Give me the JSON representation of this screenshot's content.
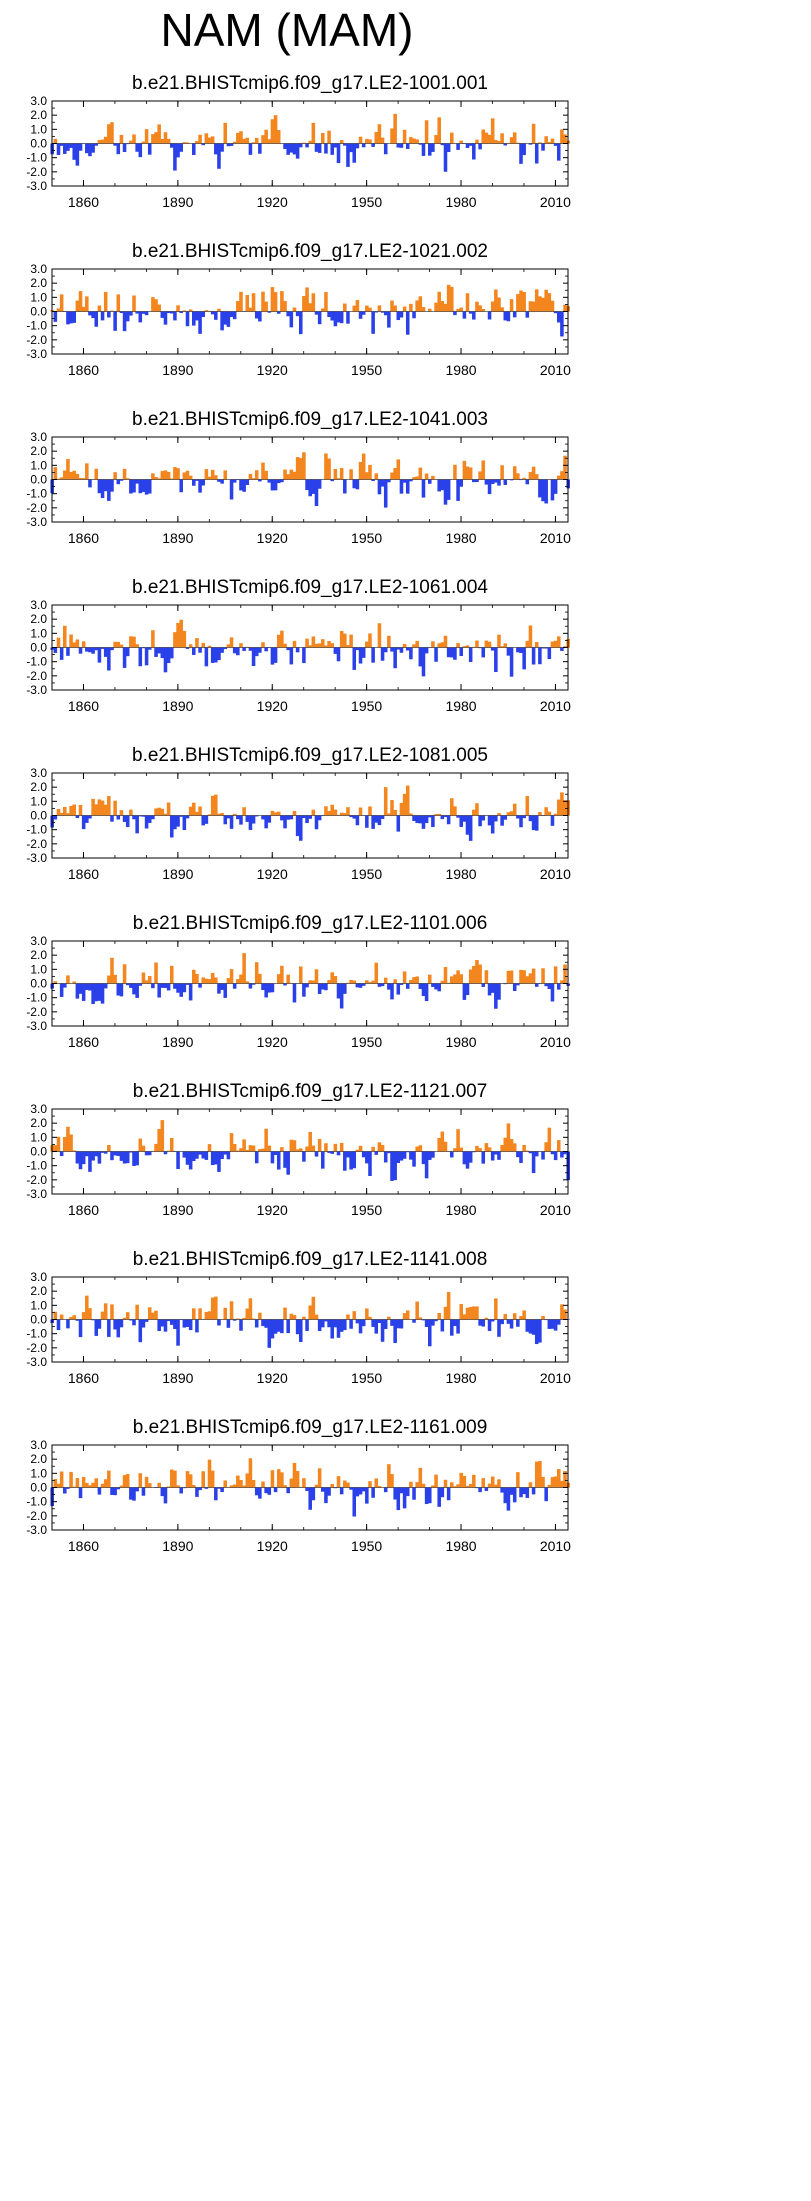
{
  "title": "NAM (MAM)",
  "colors": {
    "positive": "#f4861f",
    "negative": "#2a40e8",
    "axis": "#000000"
  },
  "chart_data": {
    "type": "area",
    "x_range": [
      1850,
      2014
    ],
    "ylim": [
      -3,
      3
    ],
    "y_ticks": [
      "3.0",
      "2.0",
      "1.0",
      "0.0",
      "-1.0",
      "-2.0",
      "-3.0"
    ],
    "x_ticks": [
      "1860",
      "1890",
      "1920",
      "1950",
      "1980",
      "2010"
    ],
    "panels": [
      {
        "title": "b.e21.BHISTcmip6.f09_g17.LE2-1001.001",
        "seed": 11
      },
      {
        "title": "b.e21.BHISTcmip6.f09_g17.LE2-1021.002",
        "seed": 23
      },
      {
        "title": "b.e21.BHISTcmip6.f09_g17.LE2-1041.003",
        "seed": 37
      },
      {
        "title": "b.e21.BHISTcmip6.f09_g17.LE2-1061.004",
        "seed": 41
      },
      {
        "title": "b.e21.BHISTcmip6.f09_g17.LE2-1081.005",
        "seed": 53
      },
      {
        "title": "b.e21.BHISTcmip6.f09_g17.LE2-1101.006",
        "seed": 67
      },
      {
        "title": "b.e21.BHISTcmip6.f09_g17.LE2-1121.007",
        "seed": 71
      },
      {
        "title": "b.e21.BHISTcmip6.f09_g17.LE2-1141.008",
        "seed": 83
      },
      {
        "title": "b.e21.BHISTcmip6.f09_g17.LE2-1161.009",
        "seed": 97
      }
    ]
  }
}
